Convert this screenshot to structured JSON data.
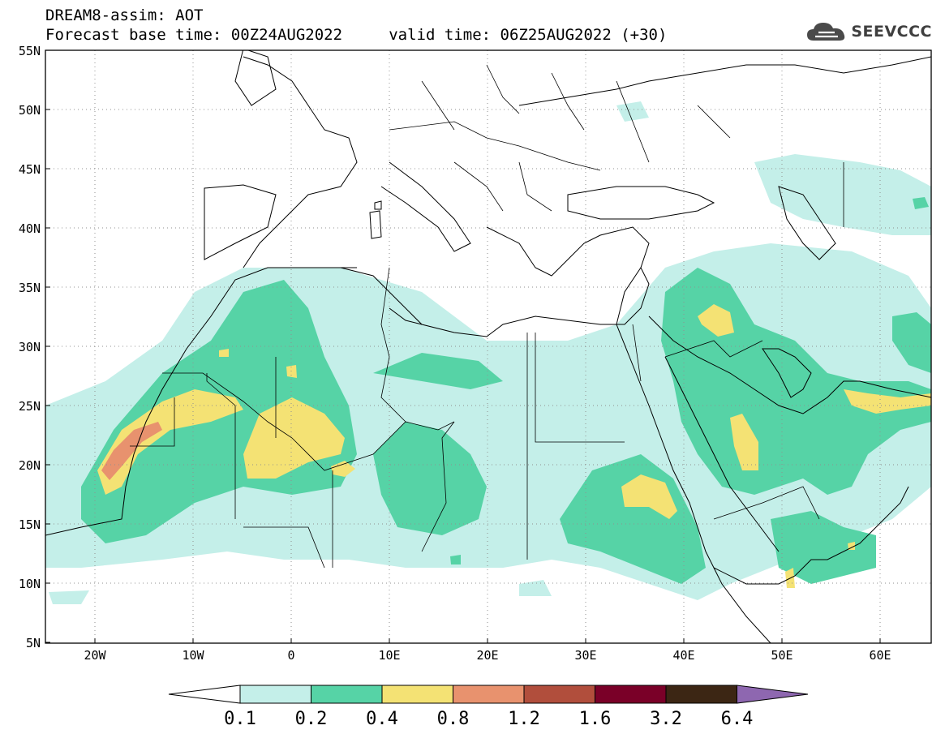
{
  "header": {
    "line1": "DREAM8-assim: AOT",
    "line2": "Forecast base time: 00Z24AUG2022     valid time: 06Z25AUG2022 (+30)"
  },
  "logo": {
    "text": "SEEVCCC",
    "icon": "cloud-icon"
  },
  "map": {
    "lon_range": [
      -25,
      65
    ],
    "lat_range": [
      5,
      55
    ],
    "lat_ticks": [
      "55N",
      "50N",
      "45N",
      "40N",
      "35N",
      "30N",
      "25N",
      "20N",
      "15N",
      "10N",
      "5N"
    ],
    "lon_ticks": [
      "20W",
      "10W",
      "0",
      "10E",
      "20E",
      "30E",
      "40E",
      "50E",
      "60E"
    ],
    "grid": "dotted"
  },
  "colorbar": {
    "labels": [
      "0.1",
      "0.2",
      "0.4",
      "0.8",
      "1.2",
      "1.6",
      "3.2",
      "6.4"
    ],
    "colors": [
      "#ffffff",
      "#c4efe9",
      "#56d3a6",
      "#f4e274",
      "#e8926e",
      "#b14e3c",
      "#7a0028",
      "#3c2614",
      "#8e67b0"
    ]
  }
}
